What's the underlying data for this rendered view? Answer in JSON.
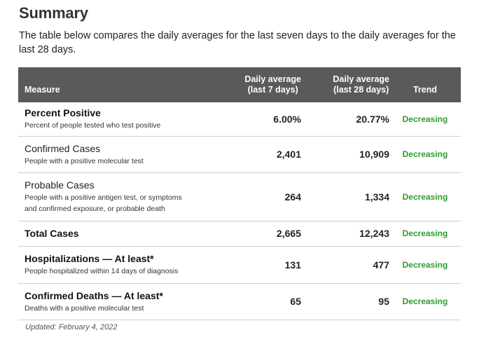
{
  "title": "Summary",
  "intro": "The table below compares the daily averages for the last seven days to the daily averages for the last 28 days.",
  "table": {
    "headers": {
      "measure": "Measure",
      "avg7_line1": "Daily average",
      "avg7_line2": "(last 7 days)",
      "avg28_line1": "Daily average",
      "avg28_line2": "(last 28 days)",
      "trend": "Trend"
    },
    "rows": [
      {
        "name": "Percent Positive",
        "description": "Percent of people tested who test positive",
        "avg7": "6.00%",
        "avg28": "20.77%",
        "trend": "Decreasing"
      },
      {
        "name": "Confirmed Cases",
        "description": "People with a positive molecular test",
        "avg7": "2,401",
        "avg28": "10,909",
        "trend": "Decreasing"
      },
      {
        "name": "Probable Cases",
        "description_line1": "People with a positive antigen test, or symptoms",
        "description_line2": "and confirmed exposure, or probable death",
        "avg7": "264",
        "avg28": "1,334",
        "trend": "Decreasing"
      },
      {
        "name": "Total Cases",
        "avg7": "2,665",
        "avg28": "12,243",
        "trend": "Decreasing"
      },
      {
        "name": "Hospitalizations — At least*",
        "description": "People hospitalized within 14 days of diagnosis",
        "avg7": "131",
        "avg28": "477",
        "trend": "Decreasing"
      },
      {
        "name": "Confirmed Deaths — At least*",
        "description": "Deaths with a positive molecular test",
        "avg7": "65",
        "avg28": "95",
        "trend": "Decreasing"
      }
    ]
  },
  "updated": "Updated: February 4, 2022",
  "colors": {
    "header_bg": "#5a5a5a",
    "trend_green": "#2e9c2e",
    "row_divider": "#cfcfcf"
  }
}
